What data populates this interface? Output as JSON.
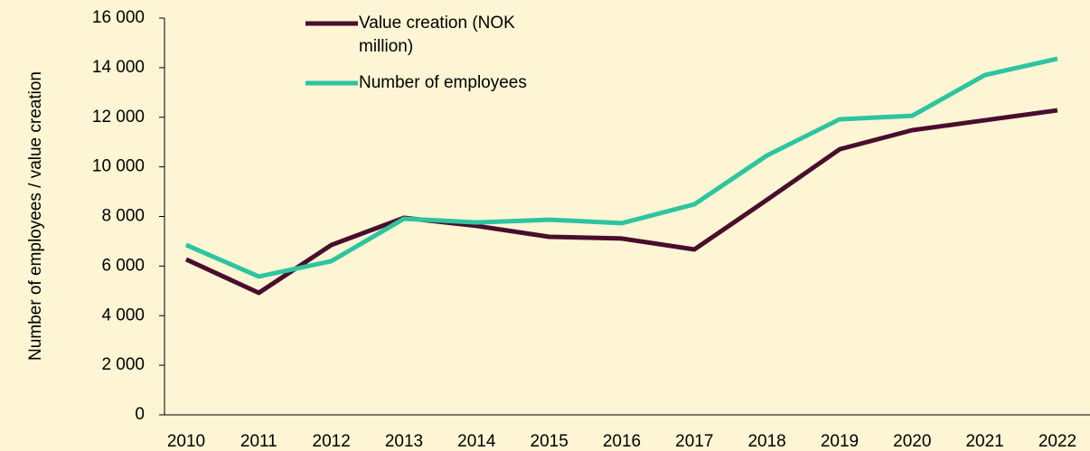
{
  "chart_data": {
    "type": "line",
    "y_label": "Number of employees / value creation",
    "categories": [
      "2010",
      "2011",
      "2012",
      "2013",
      "2014",
      "2015",
      "2016",
      "2017",
      "2018",
      "2019",
      "2020",
      "2021",
      "2022"
    ],
    "series": [
      {
        "name": "Value creation (NOK million)",
        "color": "#4a0d2e",
        "values": [
          6270,
          4920,
          6850,
          7945,
          7620,
          7180,
          7110,
          6670,
          8670,
          10710,
          11480,
          11880,
          12280
        ]
      },
      {
        "name": "Number of employees",
        "color": "#2ec4a0",
        "values": [
          6850,
          5580,
          6200,
          7910,
          7760,
          7870,
          7730,
          8490,
          10460,
          11920,
          12060,
          13700,
          14360
        ]
      }
    ],
    "ylim": [
      0,
      16000
    ],
    "yticks": [
      0,
      {
        "value": 2000,
        "label": "2 000"
      },
      {
        "value": 4000,
        "label": "4 000"
      },
      {
        "value": 6000,
        "label": "6 000"
      },
      {
        "value": 8000,
        "label": "8 000"
      },
      {
        "value": 10000,
        "label": "10 000"
      },
      {
        "value": 12000,
        "label": "12 000"
      },
      {
        "value": 14000,
        "label": "14 000"
      },
      {
        "value": 16000,
        "label": "16 000"
      }
    ],
    "grid": false,
    "legend": "top"
  }
}
